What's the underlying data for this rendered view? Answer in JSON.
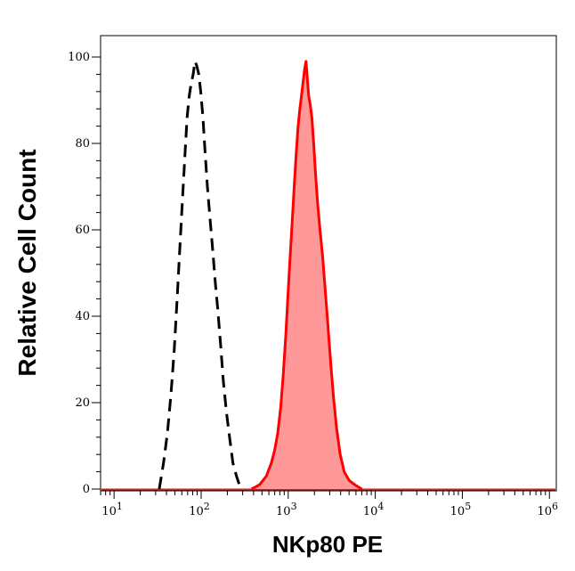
{
  "chart_data": {
    "type": "area",
    "title": "",
    "xlabel": "NKp80 PE",
    "ylabel": "Relative Cell Count",
    "x_scale": "log",
    "xlim": [
      7,
      1200000
    ],
    "ylim": [
      0,
      100
    ],
    "grid": false,
    "legend": "none",
    "y_ticks": [
      0,
      20,
      40,
      60,
      80,
      100
    ],
    "x_ticks": [
      {
        "value": 10,
        "base": "10",
        "exp": "1"
      },
      {
        "value": 100,
        "base": "10",
        "exp": "2"
      },
      {
        "value": 1000,
        "base": "10",
        "exp": "3"
      },
      {
        "value": 10000,
        "base": "10",
        "exp": "4"
      },
      {
        "value": 100000,
        "base": "10",
        "exp": "5"
      },
      {
        "value": 1000000,
        "base": "10",
        "exp": "6"
      }
    ],
    "series": [
      {
        "style": "dashed",
        "color": "#000000",
        "fill": "none",
        "points": [
          [
            33,
            0
          ],
          [
            37,
            6
          ],
          [
            41,
            13
          ],
          [
            45,
            22
          ],
          [
            49,
            32
          ],
          [
            53,
            44
          ],
          [
            57,
            56
          ],
          [
            61,
            67
          ],
          [
            65,
            77
          ],
          [
            69,
            86
          ],
          [
            73,
            91
          ],
          [
            77,
            94
          ],
          [
            81,
            96
          ],
          [
            85,
            99
          ],
          [
            89,
            98
          ],
          [
            94,
            96
          ],
          [
            99,
            92
          ],
          [
            105,
            86
          ],
          [
            111,
            78
          ],
          [
            118,
            70
          ],
          [
            126,
            63
          ],
          [
            135,
            56
          ],
          [
            145,
            48
          ],
          [
            156,
            41
          ],
          [
            168,
            33
          ],
          [
            180,
            25
          ],
          [
            195,
            18
          ],
          [
            212,
            12
          ],
          [
            232,
            6
          ],
          [
            255,
            3
          ],
          [
            285,
            0
          ]
        ]
      },
      {
        "style": "solid",
        "color": "#ff0000",
        "fill": "#ff9999",
        "points": [
          [
            380,
            0
          ],
          [
            470,
            1
          ],
          [
            560,
            3
          ],
          [
            640,
            6
          ],
          [
            700,
            9
          ],
          [
            760,
            13
          ],
          [
            820,
            19
          ],
          [
            880,
            27
          ],
          [
            940,
            36
          ],
          [
            1000,
            46
          ],
          [
            1060,
            55
          ],
          [
            1120,
            63
          ],
          [
            1180,
            71
          ],
          [
            1240,
            78
          ],
          [
            1300,
            84
          ],
          [
            1360,
            88
          ],
          [
            1420,
            91
          ],
          [
            1480,
            94
          ],
          [
            1540,
            97
          ],
          [
            1600,
            99
          ],
          [
            1660,
            95
          ],
          [
            1720,
            91
          ],
          [
            1790,
            89
          ],
          [
            1870,
            86
          ],
          [
            1960,
            80
          ],
          [
            2060,
            73
          ],
          [
            2180,
            66
          ],
          [
            2320,
            60
          ],
          [
            2480,
            54
          ],
          [
            2660,
            46
          ],
          [
            2860,
            38
          ],
          [
            3080,
            29
          ],
          [
            3320,
            21
          ],
          [
            3600,
            14
          ],
          [
            3950,
            8
          ],
          [
            4400,
            4
          ],
          [
            5000,
            2
          ],
          [
            5800,
            1
          ],
          [
            7000,
            0
          ]
        ]
      }
    ]
  }
}
